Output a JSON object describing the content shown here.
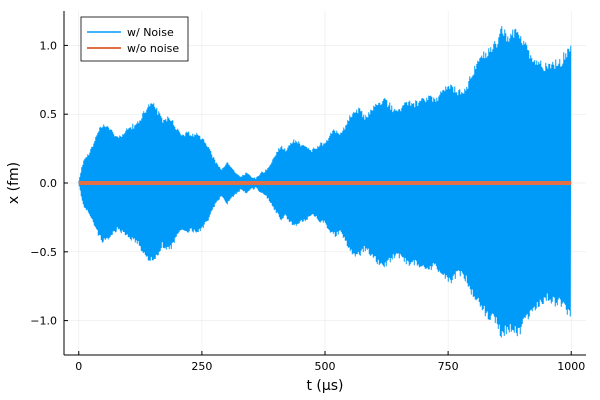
{
  "chart_data": {
    "type": "line",
    "title": "",
    "xlabel": "t (μs)",
    "ylabel": "x (fm)",
    "xlim": [
      -30,
      1030
    ],
    "ylim": [
      -1.25,
      1.25
    ],
    "xticks": [
      0,
      250,
      500,
      750,
      1000
    ],
    "xtick_labels": [
      "0",
      "250",
      "500",
      "750",
      "1000"
    ],
    "yticks": [
      -1.0,
      -0.5,
      0.0,
      0.5,
      1.0
    ],
    "ytick_labels": [
      "−1.0",
      "−0.5",
      "0.0",
      "0.5",
      "1.0"
    ],
    "grid": true,
    "legend_position": "top-left",
    "series": [
      {
        "name": "w/ Noise",
        "color": "#009af9",
        "style": "oscillation-envelope",
        "envelope_x": [
          0,
          5,
          10,
          20,
          30,
          40,
          50,
          60,
          70,
          80,
          90,
          100,
          110,
          120,
          130,
          140,
          150,
          160,
          170,
          180,
          190,
          200,
          210,
          220,
          230,
          240,
          250,
          260,
          270,
          280,
          290,
          300,
          310,
          320,
          330,
          340,
          350,
          360,
          370,
          380,
          390,
          400,
          410,
          420,
          430,
          440,
          450,
          460,
          470,
          480,
          490,
          500,
          510,
          520,
          530,
          540,
          550,
          560,
          570,
          580,
          590,
          600,
          610,
          620,
          630,
          640,
          650,
          660,
          670,
          680,
          690,
          700,
          710,
          720,
          730,
          740,
          750,
          760,
          770,
          780,
          790,
          800,
          810,
          820,
          830,
          840,
          850,
          860,
          870,
          880,
          890,
          900,
          910,
          920,
          930,
          940,
          950,
          960,
          970,
          980,
          990,
          1000
        ],
        "envelope_amplitude": [
          0.02,
          0.1,
          0.18,
          0.22,
          0.3,
          0.4,
          0.45,
          0.43,
          0.38,
          0.35,
          0.38,
          0.41,
          0.43,
          0.46,
          0.52,
          0.58,
          0.6,
          0.55,
          0.47,
          0.5,
          0.48,
          0.4,
          0.36,
          0.38,
          0.36,
          0.37,
          0.34,
          0.3,
          0.22,
          0.15,
          0.1,
          0.16,
          0.12,
          0.08,
          0.05,
          0.08,
          0.05,
          0.04,
          0.08,
          0.1,
          0.15,
          0.22,
          0.28,
          0.25,
          0.3,
          0.33,
          0.3,
          0.28,
          0.25,
          0.26,
          0.3,
          0.3,
          0.37,
          0.4,
          0.38,
          0.42,
          0.5,
          0.54,
          0.55,
          0.5,
          0.53,
          0.58,
          0.6,
          0.63,
          0.6,
          0.56,
          0.55,
          0.58,
          0.62,
          0.6,
          0.61,
          0.63,
          0.65,
          0.63,
          0.65,
          0.7,
          0.74,
          0.72,
          0.68,
          0.7,
          0.75,
          0.84,
          0.9,
          0.96,
          1.0,
          1.02,
          1.08,
          1.15,
          1.1,
          1.12,
          1.15,
          1.1,
          1.02,
          0.95,
          0.93,
          0.9,
          0.88,
          0.9,
          0.9,
          0.92,
          0.98,
          1.02
        ]
      },
      {
        "name": "w/o noise",
        "color": "#e26f46",
        "x": [
          0,
          1000
        ],
        "y": [
          0,
          0
        ]
      }
    ]
  }
}
